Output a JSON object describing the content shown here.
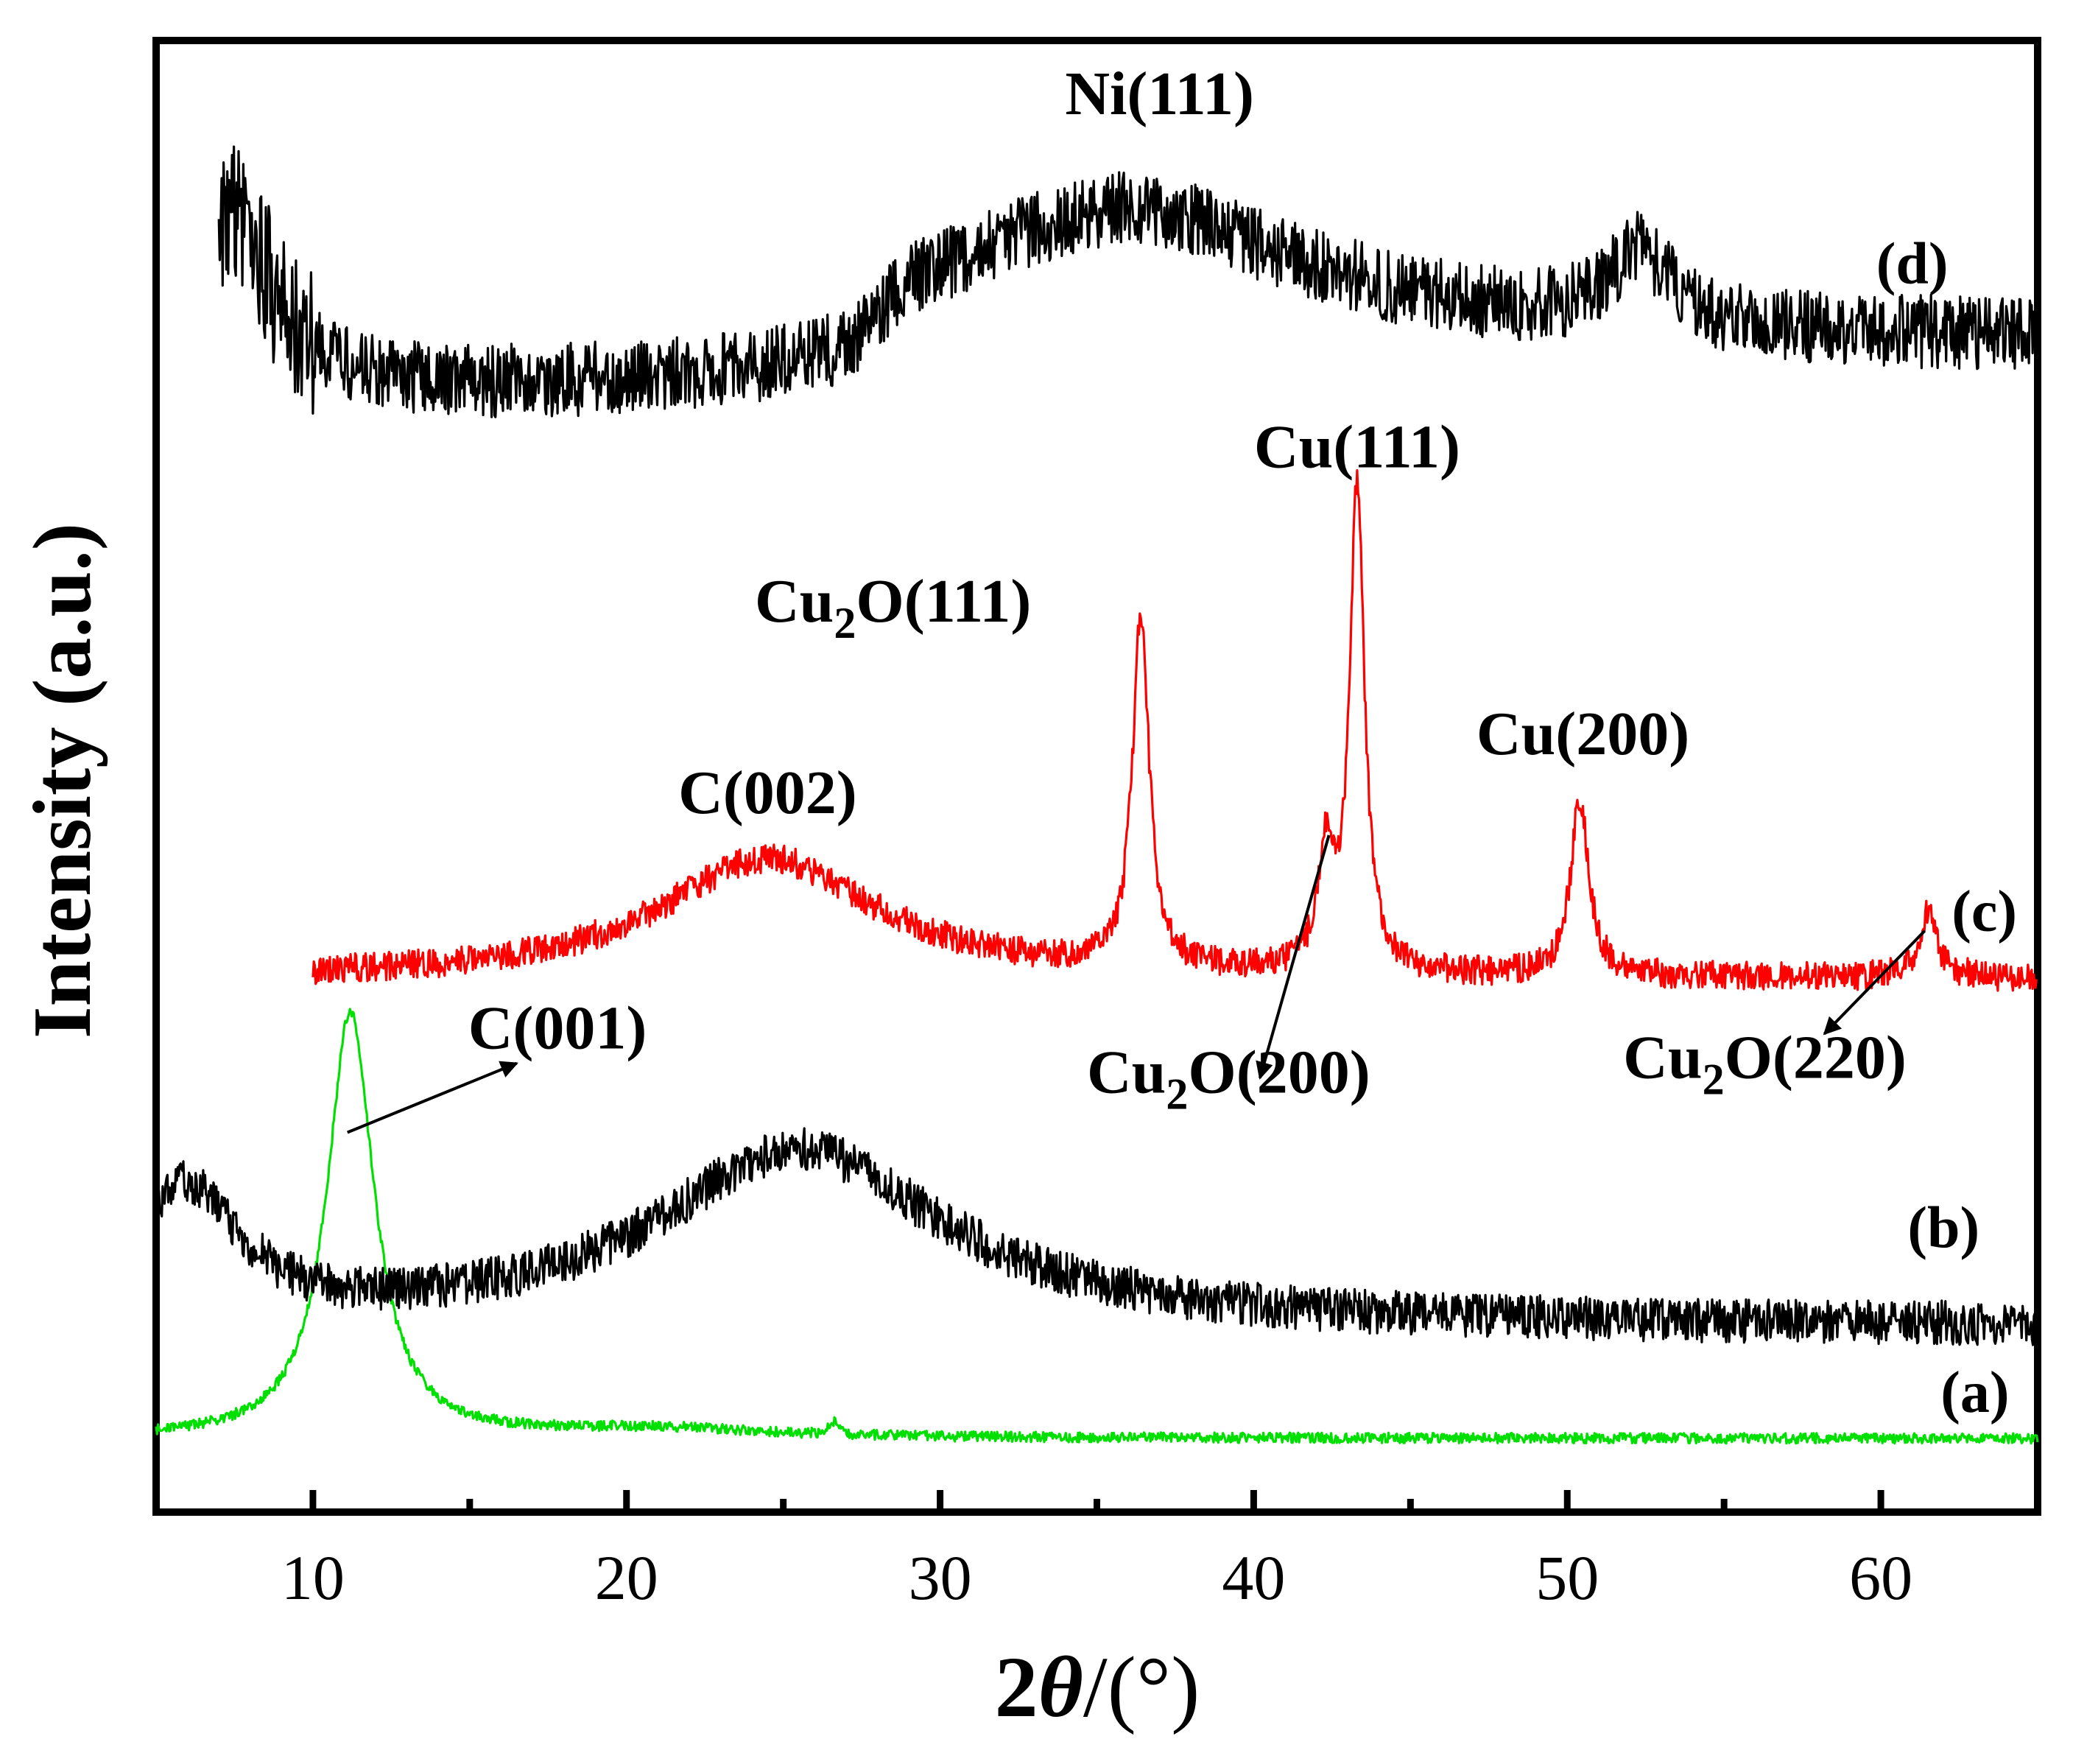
{
  "chart_data": {
    "type": "line",
    "title": "",
    "xlabel": "2θ/(°)",
    "xlabel_parts": {
      "prefix": "2",
      "symbol": "θ",
      "suffix": "/(°)"
    },
    "ylabel": "Intensity (a.u.)",
    "xlim": [
      5,
      65
    ],
    "x_ticks": [
      10,
      20,
      30,
      40,
      50,
      60
    ],
    "x_minor_ticks": [
      15,
      25,
      35,
      45,
      55
    ],
    "y_ticks": [],
    "ylim": [
      0,
      100
    ],
    "grid": false,
    "series": [
      {
        "name": "(a)",
        "label_text": "(a)",
        "color": "#00e000",
        "baseline": 5,
        "noise": 0.35,
        "peaks": [
          [
            11.2,
            29,
            0.9
          ],
          [
            26.6,
            0.9,
            0.15
          ],
          [
            21,
            0.6,
            4
          ]
        ],
        "start_x": 5,
        "start_y": 6.3,
        "end_x": 65
      },
      {
        "name": "(b)",
        "label_text": "(b)",
        "color": "#000000",
        "baseline": 12.6,
        "noise": 1.5,
        "peaks": [
          [
            25.5,
            12,
            5.5
          ],
          [
            6,
            9,
            2
          ]
        ],
        "start_x": 5,
        "end_x": 65
      },
      {
        "name": "(c)",
        "label_text": "(c)",
        "color": "#ff0000",
        "baseline": 36.2,
        "noise": 1.0,
        "peaks": [
          [
            24.5,
            8.2,
            4.2
          ],
          [
            36.4,
            24,
            0.32
          ],
          [
            42.3,
            8,
            0.3
          ],
          [
            43.3,
            33,
            0.28
          ],
          [
            50.4,
            12,
            0.35
          ],
          [
            61.5,
            4.5,
            0.35
          ]
        ],
        "start_x": 10,
        "end_x": 65
      },
      {
        "name": "(d)",
        "label_text": "(d)",
        "color": "#000000",
        "baseline": 75.5,
        "noise": 2.5,
        "peaks": [
          [
            7.4,
            12,
            1.6
          ],
          [
            36,
            9,
            7
          ],
          [
            52.3,
            5,
            1.2
          ]
        ],
        "start_x": 7,
        "end_x": 65,
        "step": [
          28,
          4
        ]
      }
    ],
    "annotations": [
      {
        "id": "ni111",
        "text": "Ni(111)",
        "main": "Ni(111)",
        "x": 37,
        "y": 95
      },
      {
        "id": "cu111",
        "text": "Cu(111)",
        "main": "Cu(111)",
        "x": 43.3,
        "y": 71
      },
      {
        "id": "cu2o111",
        "text": "Cu2O(111)",
        "main": "Cu",
        "sub": "2",
        "rest": "O(111)",
        "x": 28.5,
        "y": 60.5
      },
      {
        "id": "c002",
        "text": "C(002)",
        "main": "C(002)",
        "x": 24.5,
        "y": 47.5
      },
      {
        "id": "cu200",
        "text": "Cu(200)",
        "main": "Cu(200)",
        "x": 50.5,
        "y": 51.5
      },
      {
        "id": "c001",
        "text": "C(001)",
        "main": "C(001)",
        "x": 17.8,
        "y": 31.5,
        "arrow_from": [
          11.1,
          25.8
        ],
        "arrow_to": [
          16.5,
          30.5
        ]
      },
      {
        "id": "cu2o200",
        "text": "Cu2O(200)",
        "main": "Cu",
        "sub": "2",
        "rest": "O(200)",
        "x": 39.2,
        "y": 28.5,
        "arrow_from": [
          42.4,
          46
        ],
        "arrow_to": [
          40.2,
          29.5
        ]
      },
      {
        "id": "cu2o220",
        "text": "Cu2O(220)",
        "main": "Cu",
        "sub": "2",
        "rest": "O(220)",
        "x": 56.3,
        "y": 29.5,
        "arrow_from": [
          61.4,
          39.5
        ],
        "arrow_to": [
          58.2,
          32.5
        ]
      }
    ],
    "series_labels": [
      {
        "name": "(a)",
        "x": 63,
        "y": 6.8
      },
      {
        "name": "(b)",
        "x": 62,
        "y": 18
      },
      {
        "name": "(c)",
        "x": 63.3,
        "y": 39.5
      },
      {
        "name": "(d)",
        "x": 61,
        "y": 83.5
      }
    ]
  }
}
